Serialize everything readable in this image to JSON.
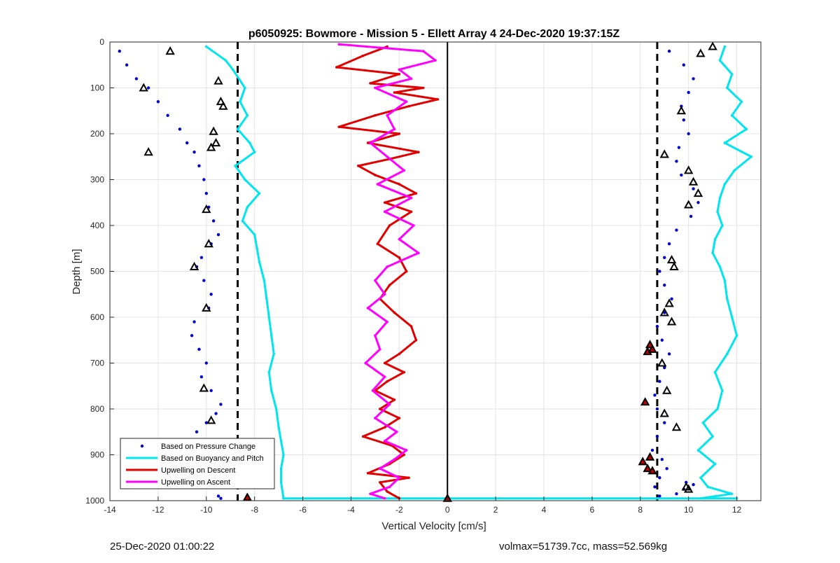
{
  "chart_data": {
    "type": "scatter",
    "title": "p6050925: Bowmore - Mission 5 - Ellett Array 4 24-Dec-2020 19:37:15Z",
    "xlabel": "Vertical Velocity [cm/s]",
    "ylabel": "Depth [m]",
    "xlim": [
      -14,
      13
    ],
    "ylim": [
      0,
      1000
    ],
    "y_reversed": true,
    "grid": true,
    "legend_position": "bottom-left",
    "x_ticks": [
      -14,
      -12,
      -10,
      -8,
      -6,
      -4,
      -2,
      0,
      2,
      4,
      6,
      8,
      10,
      12
    ],
    "y_ticks": [
      0,
      100,
      200,
      300,
      400,
      500,
      600,
      700,
      800,
      900,
      1000
    ],
    "reference_lines": [
      {
        "type": "vertical",
        "x": -8.7,
        "style": "dashed",
        "color": "#000000"
      },
      {
        "type": "vertical",
        "x": 8.7,
        "style": "dashed",
        "color": "#000000"
      },
      {
        "type": "vertical",
        "x": 0,
        "style": "solid",
        "color": "#000000"
      }
    ],
    "series": [
      {
        "name": "Based on Pressure Change",
        "style": "points",
        "color": "#0000CC",
        "groups": [
          {
            "x": [
              -13.6,
              -13.3,
              -12.9,
              -12.4,
              -12.0,
              -11.6,
              -11.1,
              -10.8,
              -10.5,
              -10.3,
              -10.1,
              -10.0,
              -9.9,
              -9.7,
              -9.5,
              -9.8,
              -10.2,
              -10.4,
              -10.1,
              -9.8,
              -9.9,
              -10.5,
              -10.6,
              -10.3,
              -10.0,
              -10.2,
              -9.8,
              -9.4,
              -9.6,
              -10.0,
              -10.4,
              -10.7,
              -10.5,
              -10.2,
              -10.3,
              -10.2,
              -9.9,
              -9.5,
              -9.4
            ],
            "y": [
              20,
              50,
              80,
              100,
              130,
              160,
              190,
              220,
              240,
              270,
              300,
              330,
              360,
              390,
              420,
              440,
              470,
              490,
              520,
              550,
              580,
              610,
              640,
              670,
              700,
              730,
              760,
              790,
              810,
              830,
              850,
              870,
              890,
              910,
              930,
              950,
              970,
              990,
              995
            ]
          },
          {
            "x": [
              9.2,
              9.8,
              10.2,
              10.0,
              9.7,
              9.8,
              10.0,
              9.6,
              9.5,
              9.7,
              10.2,
              10.4,
              10.1,
              9.5,
              9.2,
              9.0,
              8.8,
              9.0,
              9.3,
              9.0,
              8.7,
              8.9,
              9.2,
              9.0,
              8.8,
              8.6,
              8.7,
              9.0,
              8.7,
              8.5,
              8.9,
              9.1,
              8.8,
              8.6,
              8.8,
              9.5,
              9.8,
              10.2,
              9.9
            ],
            "y": [
              20,
              50,
              80,
              110,
              140,
              170,
              200,
              230,
              260,
              290,
              320,
              350,
              380,
              410,
              440,
              470,
              500,
              530,
              560,
              590,
              620,
              650,
              680,
              710,
              740,
              770,
              800,
              830,
              860,
              890,
              910,
              930,
              950,
              970,
              990,
              985,
              975,
              965,
              960
            ]
          }
        ]
      },
      {
        "name": "Based on Buoyancy and Pitch",
        "style": "line",
        "color": "#00E5EE",
        "groups": [
          {
            "x": [
              -10.0,
              -9.2,
              -8.9,
              -8.4,
              -8.6,
              -8.3,
              -8.7,
              -8.2,
              -8.0,
              -8.8,
              -8.4,
              -7.8,
              -8.3,
              -8.5,
              -8.0,
              -7.9,
              -7.8,
              -7.6,
              -7.5,
              -7.4,
              -7.3,
              -7.2,
              -7.4,
              -7.3,
              -7.1,
              -7.0,
              -6.9,
              -6.8,
              -6.9,
              -6.9,
              -6.8
            ],
            "y": [
              10,
              40,
              60,
              100,
              130,
              160,
              190,
              220,
              240,
              270,
              300,
              330,
              360,
              390,
              420,
              450,
              480,
              520,
              560,
              600,
              640,
              680,
              720,
              760,
              800,
              840,
              870,
              900,
              930,
              960,
              995
            ]
          },
          {
            "x": [
              11.5,
              11.3,
              11.8,
              11.6,
              12.2,
              11.8,
              12.4,
              11.5,
              12.6,
              11.9,
              11.5,
              11.3,
              11.2,
              11.4,
              11.1,
              11.0,
              11.3,
              11.5,
              11.6,
              11.8,
              12.0,
              11.6,
              11.1,
              11.4,
              11.2,
              10.6,
              11.0,
              10.4,
              11.1,
              10.5,
              10.8,
              11.8,
              10.5
            ],
            "y": [
              10,
              40,
              70,
              100,
              130,
              160,
              190,
              220,
              250,
              280,
              310,
              340,
              370,
              400,
              430,
              460,
              490,
              520,
              560,
              600,
              640,
              680,
              720,
              760,
              800,
              830,
              860,
              890,
              920,
              950,
              970,
              985,
              995
            ]
          },
          {
            "x": [
              -6.8,
              12.0
            ],
            "y": [
              995,
              995
            ]
          }
        ]
      },
      {
        "name": "Upwelling on Descent",
        "style": "line",
        "color": "#E00000",
        "groups": [
          {
            "x": [
              -2.5,
              -3.5,
              -4.6,
              -2.0,
              -3.2,
              -1.0,
              -2.2,
              -0.4,
              -1.6,
              -3.0,
              -4.5,
              -2.0,
              -3.3,
              -1.2,
              -2.4,
              -3.7,
              -3.0,
              -2.0,
              -1.3,
              -2.6,
              -1.5,
              -2.4,
              -2.9,
              -2.0,
              -1.7,
              -2.4,
              -2.8,
              -2.2,
              -1.5,
              -1.3,
              -2.0,
              -2.6,
              -1.8,
              -2.5,
              -3.0,
              -2.2,
              -2.8,
              -2.0,
              -2.6,
              -3.5,
              -2.3,
              -1.8,
              -2.4,
              -3.3,
              -1.6,
              -2.8,
              -2.5,
              -2.0
            ],
            "y": [
              10,
              30,
              55,
              70,
              90,
              100,
              110,
              125,
              140,
              160,
              185,
              200,
              220,
              240,
              255,
              270,
              290,
              310,
              330,
              350,
              370,
              400,
              440,
              470,
              500,
              530,
              560,
              590,
              620,
              650,
              680,
              700,
              720,
              740,
              760,
              780,
              800,
              820,
              840,
              860,
              880,
              900,
              920,
              940,
              950,
              960,
              980,
              995
            ]
          }
        ]
      },
      {
        "name": "Upwelling on Ascent",
        "style": "line",
        "color": "#FF00FF",
        "groups": [
          {
            "x": [
              -4.5,
              -1.0,
              -0.5,
              -2.0,
              -1.5,
              -3.0,
              -1.7,
              -2.5,
              -2.2,
              -3.2,
              -2.5,
              -1.8,
              -2.9,
              -1.5,
              -2.6,
              -1.4,
              -2.0,
              -1.2,
              -2.5,
              -3.0,
              -2.6,
              -3.3,
              -2.5,
              -3.0,
              -2.8,
              -3.4,
              -2.6,
              -3.1,
              -2.4,
              -3.0,
              -2.1,
              -2.6,
              -1.7,
              -2.2,
              -2.8,
              -2.0,
              -2.4,
              -3.2,
              -2.6
            ],
            "y": [
              5,
              20,
              40,
              60,
              80,
              100,
              130,
              160,
              190,
              220,
              250,
              280,
              310,
              340,
              370,
              400,
              430,
              460,
              490,
              520,
              550,
              580,
              610,
              640,
              670,
              700,
              730,
              760,
              790,
              820,
              850,
              870,
              890,
              910,
              930,
              950,
              970,
              985,
              995
            ]
          }
        ]
      },
      {
        "name": "markers_hollow",
        "style": "triangles",
        "color": "#000000",
        "x": [
          -11.5,
          -12.6,
          -12.4,
          -9.5,
          -9.4,
          -9.3,
          -9.7,
          -9.6,
          -9.8,
          -10.0,
          -9.9,
          -10.5,
          -10.0,
          -10.1,
          -9.8,
          11.0,
          10.5,
          9.7,
          10.0,
          9.0,
          10.2,
          10.4,
          10.0,
          9.3,
          9.4,
          9.2,
          9.0,
          9.3,
          8.9,
          9.1,
          9.0,
          9.5,
          9.9,
          10.0
        ],
        "y": [
          20,
          100,
          240,
          85,
          130,
          140,
          195,
          220,
          230,
          365,
          440,
          490,
          580,
          755,
          825,
          10,
          25,
          150,
          280,
          245,
          305,
          330,
          355,
          475,
          490,
          570,
          590,
          610,
          700,
          760,
          810,
          840,
          970,
          975
        ]
      },
      {
        "name": "markers_filled",
        "style": "triangles",
        "color": "#C00000",
        "x": [
          8.4,
          8.3,
          8.5,
          8.2,
          8.4,
          8.1,
          8.3,
          8.5,
          0,
          -8.3
        ],
        "y": [
          660,
          675,
          670,
          785,
          905,
          915,
          930,
          935,
          995,
          993
        ]
      }
    ]
  },
  "legend": {
    "items": [
      {
        "label": "Based on Pressure Change",
        "color": "#0000CC",
        "style": "dot"
      },
      {
        "label": "Based on Buoyancy and Pitch",
        "color": "#00E5EE",
        "style": "line"
      },
      {
        "label": "Upwelling on Descent",
        "color": "#E00000",
        "style": "line"
      },
      {
        "label": "Upwelling on Ascent",
        "color": "#FF00FF",
        "style": "line"
      }
    ]
  },
  "footer": {
    "left": "25-Dec-2020 01:00:22",
    "right": "volmax=51739.7cc, mass=52.569kg"
  }
}
